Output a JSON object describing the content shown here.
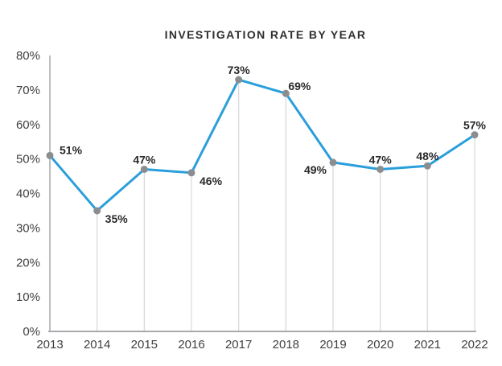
{
  "chart_data": {
    "type": "line",
    "title": "INVESTIGATION RATE BY YEAR",
    "categories": [
      "2013",
      "2014",
      "2015",
      "2016",
      "2017",
      "2018",
      "2019",
      "2020",
      "2021",
      "2022"
    ],
    "values": [
      51,
      35,
      47,
      46,
      73,
      69,
      49,
      47,
      48,
      57
    ],
    "data_labels": [
      "51%",
      "35%",
      "47%",
      "46%",
      "73%",
      "69%",
      "49%",
      "47%",
      "48%",
      "57%"
    ],
    "ytick_labels": [
      "0%",
      "10%",
      "20%",
      "30%",
      "40%",
      "50%",
      "60%",
      "70%",
      "80%"
    ],
    "ylim": [
      0,
      80
    ],
    "ytick_step": 10,
    "xlabel": "",
    "ylabel": "",
    "legend": "none",
    "grid": "vertical-drop-lines-from-points",
    "label_positions": [
      "right",
      "below-right",
      "above",
      "below-right",
      "above",
      "above-right",
      "below-left",
      "above",
      "above",
      "above"
    ],
    "colors": {
      "line": "#2A9FDB",
      "marker": "#8B8E91",
      "drop_line": "#D8D8D9",
      "axis": "#A8AAAD",
      "tick_text": "#414144",
      "data_label_text": "#29292B",
      "title_text": "#2F2F31",
      "background": "#FFFFFF"
    }
  }
}
